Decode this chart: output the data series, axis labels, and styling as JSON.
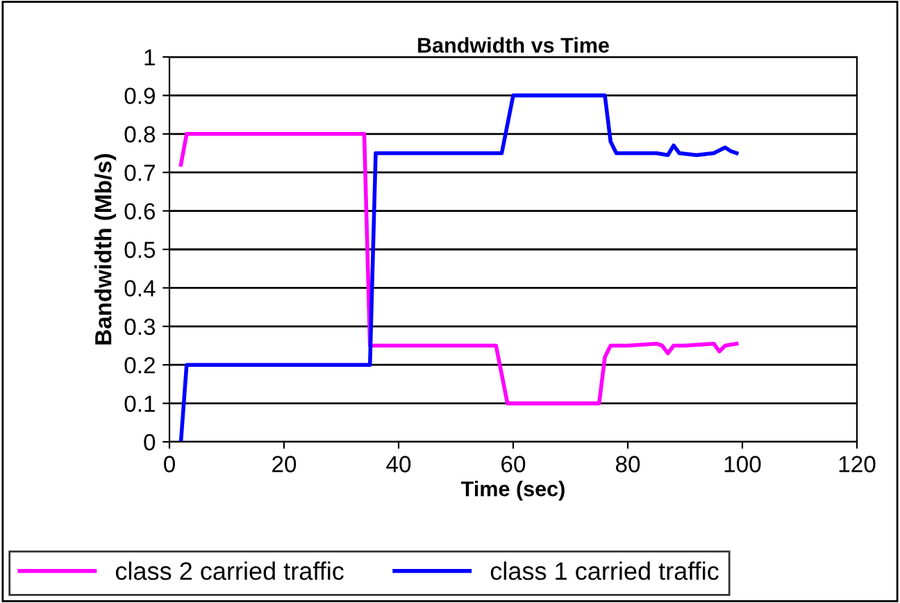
{
  "chart_data": {
    "type": "line",
    "title": "Bandwidth vs Time",
    "xlabel": "Time (sec)",
    "ylabel": "Bandwidth (Mb/s)",
    "xlim": [
      0,
      120
    ],
    "xticks": [
      0,
      20,
      40,
      60,
      80,
      100,
      120
    ],
    "ylim": [
      0,
      1
    ],
    "yticks": [
      0,
      0.1,
      0.2,
      0.3,
      0.4,
      0.5,
      0.6,
      0.7,
      0.8,
      0.9,
      1
    ],
    "grid": "y",
    "legend": "bottom",
    "marker": "none",
    "line_style": "solid",
    "series": [
      {
        "name": "class 2 carried traffic",
        "color": "#ff00ff",
        "x": [
          2,
          3,
          10,
          20,
          30,
          34,
          35,
          40,
          50,
          57,
          59,
          65,
          70,
          75,
          76,
          77,
          80,
          85,
          86,
          87,
          88,
          90,
          95,
          96,
          97,
          99
        ],
        "values": [
          0.72,
          0.8,
          0.8,
          0.8,
          0.8,
          0.8,
          0.25,
          0.25,
          0.25,
          0.25,
          0.1,
          0.1,
          0.1,
          0.1,
          0.22,
          0.25,
          0.25,
          0.255,
          0.25,
          0.23,
          0.25,
          0.25,
          0.255,
          0.235,
          0.25,
          0.255
        ]
      },
      {
        "name": "class 1 carried traffic",
        "color": "#0000ff",
        "x": [
          2,
          3,
          10,
          20,
          30,
          35,
          36,
          40,
          50,
          58,
          60,
          65,
          70,
          76,
          77,
          78,
          80,
          85,
          87,
          88,
          89,
          92,
          95,
          97,
          98,
          99
        ],
        "values": [
          0,
          0.2,
          0.2,
          0.2,
          0.2,
          0.2,
          0.75,
          0.75,
          0.75,
          0.75,
          0.9,
          0.9,
          0.9,
          0.9,
          0.78,
          0.75,
          0.75,
          0.75,
          0.745,
          0.77,
          0.75,
          0.745,
          0.75,
          0.765,
          0.755,
          0.75
        ]
      }
    ]
  }
}
